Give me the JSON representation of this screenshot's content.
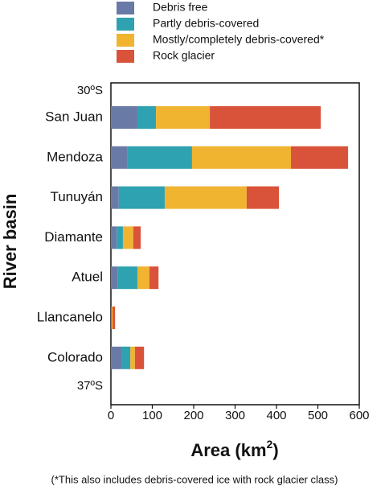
{
  "chart_data": {
    "type": "stacked-barh",
    "categories": [
      "San Juan",
      "Mendoza",
      "Tunuyán",
      "Diamante",
      "Atuel",
      "Llancanelo",
      "Colorado"
    ],
    "series": [
      {
        "name": "Debris free",
        "color": "#6a7aa6",
        "values": [
          64,
          39,
          19,
          14,
          16,
          1,
          27
        ]
      },
      {
        "name": "Partly debris-covered",
        "color": "#2ea2b0",
        "values": [
          45,
          157,
          111,
          15,
          48,
          1,
          20
        ]
      },
      {
        "name": "Mostly/completely debris-covered*",
        "color": "#f0b431",
        "values": [
          130,
          239,
          198,
          25,
          29,
          2,
          11
        ]
      },
      {
        "name": "Rock glacier",
        "color": "#d9533a",
        "values": [
          268,
          138,
          78,
          18,
          22,
          6,
          22
        ]
      }
    ],
    "xlim": [
      0,
      600
    ],
    "xticks": [
      0,
      100,
      200,
      300,
      400,
      500,
      600
    ],
    "x_label": [
      "Area (km",
      "2",
      ")"
    ],
    "y_label": "River basin",
    "annotations": [
      "30ºS",
      "37ºS"
    ],
    "footnote": "(*This also includes debris-covered ice with rock glacier class)"
  }
}
